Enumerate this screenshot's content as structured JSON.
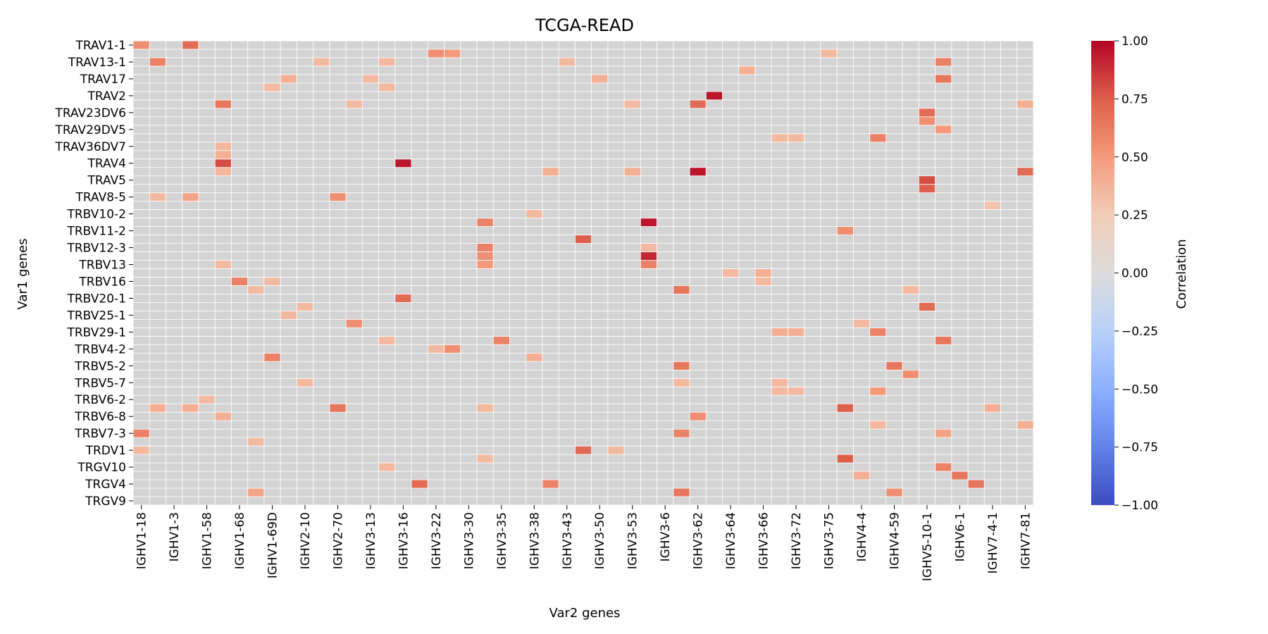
{
  "chart_data": {
    "type": "heatmap",
    "title": "TCGA-READ",
    "xlabel": "Var2 genes",
    "ylabel": "Var1 genes",
    "x_tick_labels": [
      "IGHV1-18",
      "IGHV1-3",
      "IGHV1-58",
      "IGHV1-68",
      "IGHV1-69D",
      "IGHV2-10",
      "IGHV2-70",
      "IGHV3-13",
      "IGHV3-16",
      "IGHV3-22",
      "IGHV3-30",
      "IGHV3-35",
      "IGHV3-38",
      "IGHV3-43",
      "IGHV3-50",
      "IGHV3-53",
      "IGHV3-6",
      "IGHV3-62",
      "IGHV3-64",
      "IGHV3-66",
      "IGHV3-72",
      "IGHV3-75",
      "IGHV4-4",
      "IGHV4-59",
      "IGHV5-10-1",
      "IGHV6-1",
      "IGHV7-4-1",
      "IGHV7-81"
    ],
    "y_tick_labels": [
      "TRAV1-1",
      "TRAV13-1",
      "TRAV17",
      "TRAV2",
      "TRAV23DV6",
      "TRAV29DV5",
      "TRAV36DV7",
      "TRAV4",
      "TRAV5",
      "TRAV8-5",
      "TRBV10-2",
      "TRBV11-2",
      "TRBV12-3",
      "TRBV13",
      "TRBV16",
      "TRBV20-1",
      "TRBV25-1",
      "TRBV29-1",
      "TRBV4-2",
      "TRBV5-2",
      "TRBV5-7",
      "TRBV6-2",
      "TRBV6-8",
      "TRBV7-3",
      "TRDV1",
      "TRGV10",
      "TRGV4",
      "TRGV9"
    ],
    "n_cols": 55,
    "n_rows": 55,
    "x_tick_step": 2,
    "y_tick_step": 2,
    "value_range": [
      -1.0,
      1.0
    ],
    "missing_color": "#d3d3d3",
    "colormap": "coolwarm",
    "colorbar": {
      "label": "Correlation",
      "ticks": [
        "1.00",
        "0.75",
        "0.50",
        "0.25",
        "0.00",
        "−0.25",
        "−0.50",
        "−0.75",
        "−1.00"
      ],
      "tick_values": [
        1.0,
        0.75,
        0.5,
        0.25,
        0.0,
        -0.25,
        -0.5,
        -0.75,
        -1.0
      ]
    },
    "cells": [
      {
        "row": 0,
        "col": 0,
        "value": 0.55
      },
      {
        "row": 0,
        "col": 3,
        "value": 0.7
      },
      {
        "row": 1,
        "col": 18,
        "value": 0.55
      },
      {
        "row": 1,
        "col": 19,
        "value": 0.5
      },
      {
        "row": 1,
        "col": 42,
        "value": 0.35
      },
      {
        "row": 2,
        "col": 1,
        "value": 0.6
      },
      {
        "row": 2,
        "col": 11,
        "value": 0.35
      },
      {
        "row": 2,
        "col": 15,
        "value": 0.35
      },
      {
        "row": 2,
        "col": 26,
        "value": 0.35
      },
      {
        "row": 2,
        "col": 49,
        "value": 0.6
      },
      {
        "row": 3,
        "col": 37,
        "value": 0.4
      },
      {
        "row": 4,
        "col": 9,
        "value": 0.4
      },
      {
        "row": 4,
        "col": 14,
        "value": 0.35
      },
      {
        "row": 4,
        "col": 28,
        "value": 0.4
      },
      {
        "row": 4,
        "col": 49,
        "value": 0.65
      },
      {
        "row": 5,
        "col": 8,
        "value": 0.35
      },
      {
        "row": 5,
        "col": 15,
        "value": 0.35
      },
      {
        "row": 6,
        "col": 35,
        "value": 0.95
      },
      {
        "row": 7,
        "col": 5,
        "value": 0.65
      },
      {
        "row": 7,
        "col": 13,
        "value": 0.35
      },
      {
        "row": 7,
        "col": 30,
        "value": 0.35
      },
      {
        "row": 7,
        "col": 34,
        "value": 0.7
      },
      {
        "row": 7,
        "col": 54,
        "value": 0.4
      },
      {
        "row": 8,
        "col": 48,
        "value": 0.7
      },
      {
        "row": 9,
        "col": 48,
        "value": 0.55
      },
      {
        "row": 10,
        "col": 49,
        "value": 0.5
      },
      {
        "row": 11,
        "col": 39,
        "value": 0.35
      },
      {
        "row": 11,
        "col": 40,
        "value": 0.35
      },
      {
        "row": 11,
        "col": 45,
        "value": 0.6
      },
      {
        "row": 12,
        "col": 5,
        "value": 0.35
      },
      {
        "row": 13,
        "col": 5,
        "value": 0.4
      },
      {
        "row": 14,
        "col": 5,
        "value": 0.8
      },
      {
        "row": 14,
        "col": 16,
        "value": 0.95
      },
      {
        "row": 15,
        "col": 5,
        "value": 0.35
      },
      {
        "row": 15,
        "col": 25,
        "value": 0.4
      },
      {
        "row": 15,
        "col": 30,
        "value": 0.4
      },
      {
        "row": 15,
        "col": 34,
        "value": 0.95
      },
      {
        "row": 15,
        "col": 54,
        "value": 0.7
      },
      {
        "row": 16,
        "col": 48,
        "value": 0.8
      },
      {
        "row": 17,
        "col": 48,
        "value": 0.75
      },
      {
        "row": 18,
        "col": 1,
        "value": 0.35
      },
      {
        "row": 18,
        "col": 3,
        "value": 0.45
      },
      {
        "row": 18,
        "col": 12,
        "value": 0.55
      },
      {
        "row": 19,
        "col": 52,
        "value": 0.3
      },
      {
        "row": 20,
        "col": 24,
        "value": 0.35
      },
      {
        "row": 21,
        "col": 21,
        "value": 0.6
      },
      {
        "row": 21,
        "col": 31,
        "value": 0.95
      },
      {
        "row": 22,
        "col": 43,
        "value": 0.55
      },
      {
        "row": 23,
        "col": 27,
        "value": 0.75
      },
      {
        "row": 24,
        "col": 21,
        "value": 0.6
      },
      {
        "row": 24,
        "col": 31,
        "value": 0.35
      },
      {
        "row": 25,
        "col": 21,
        "value": 0.55
      },
      {
        "row": 25,
        "col": 31,
        "value": 0.9
      },
      {
        "row": 26,
        "col": 5,
        "value": 0.35
      },
      {
        "row": 26,
        "col": 21,
        "value": 0.5
      },
      {
        "row": 26,
        "col": 31,
        "value": 0.6
      },
      {
        "row": 27,
        "col": 36,
        "value": 0.35
      },
      {
        "row": 27,
        "col": 38,
        "value": 0.4
      },
      {
        "row": 28,
        "col": 6,
        "value": 0.6
      },
      {
        "row": 28,
        "col": 8,
        "value": 0.35
      },
      {
        "row": 28,
        "col": 38,
        "value": 0.35
      },
      {
        "row": 29,
        "col": 7,
        "value": 0.35
      },
      {
        "row": 29,
        "col": 33,
        "value": 0.65
      },
      {
        "row": 29,
        "col": 47,
        "value": 0.35
      },
      {
        "row": 30,
        "col": 16,
        "value": 0.7
      },
      {
        "row": 31,
        "col": 10,
        "value": 0.35
      },
      {
        "row": 31,
        "col": 48,
        "value": 0.7
      },
      {
        "row": 32,
        "col": 9,
        "value": 0.35
      },
      {
        "row": 33,
        "col": 13,
        "value": 0.55
      },
      {
        "row": 33,
        "col": 44,
        "value": 0.35
      },
      {
        "row": 34,
        "col": 39,
        "value": 0.4
      },
      {
        "row": 34,
        "col": 40,
        "value": 0.4
      },
      {
        "row": 34,
        "col": 45,
        "value": 0.6
      },
      {
        "row": 35,
        "col": 15,
        "value": 0.35
      },
      {
        "row": 35,
        "col": 22,
        "value": 0.6
      },
      {
        "row": 35,
        "col": 49,
        "value": 0.65
      },
      {
        "row": 36,
        "col": 18,
        "value": 0.35
      },
      {
        "row": 36,
        "col": 19,
        "value": 0.55
      },
      {
        "row": 37,
        "col": 8,
        "value": 0.6
      },
      {
        "row": 37,
        "col": 24,
        "value": 0.4
      },
      {
        "row": 38,
        "col": 33,
        "value": 0.65
      },
      {
        "row": 38,
        "col": 46,
        "value": 0.65
      },
      {
        "row": 39,
        "col": 47,
        "value": 0.55
      },
      {
        "row": 40,
        "col": 10,
        "value": 0.35
      },
      {
        "row": 40,
        "col": 33,
        "value": 0.35
      },
      {
        "row": 40,
        "col": 39,
        "value": 0.35
      },
      {
        "row": 41,
        "col": 39,
        "value": 0.35
      },
      {
        "row": 41,
        "col": 40,
        "value": 0.35
      },
      {
        "row": 41,
        "col": 45,
        "value": 0.5
      },
      {
        "row": 42,
        "col": 4,
        "value": 0.35
      },
      {
        "row": 43,
        "col": 1,
        "value": 0.4
      },
      {
        "row": 43,
        "col": 3,
        "value": 0.4
      },
      {
        "row": 43,
        "col": 12,
        "value": 0.65
      },
      {
        "row": 43,
        "col": 21,
        "value": 0.35
      },
      {
        "row": 43,
        "col": 43,
        "value": 0.75
      },
      {
        "row": 43,
        "col": 52,
        "value": 0.4
      },
      {
        "row": 44,
        "col": 5,
        "value": 0.4
      },
      {
        "row": 44,
        "col": 34,
        "value": 0.55
      },
      {
        "row": 45,
        "col": 45,
        "value": 0.35
      },
      {
        "row": 45,
        "col": 54,
        "value": 0.4
      },
      {
        "row": 46,
        "col": 0,
        "value": 0.6
      },
      {
        "row": 46,
        "col": 33,
        "value": 0.6
      },
      {
        "row": 46,
        "col": 49,
        "value": 0.45
      },
      {
        "row": 47,
        "col": 7,
        "value": 0.35
      },
      {
        "row": 48,
        "col": 0,
        "value": 0.35
      },
      {
        "row": 48,
        "col": 27,
        "value": 0.7
      },
      {
        "row": 48,
        "col": 29,
        "value": 0.35
      },
      {
        "row": 49,
        "col": 21,
        "value": 0.35
      },
      {
        "row": 49,
        "col": 43,
        "value": 0.75
      },
      {
        "row": 50,
        "col": 15,
        "value": 0.35
      },
      {
        "row": 50,
        "col": 49,
        "value": 0.6
      },
      {
        "row": 51,
        "col": 44,
        "value": 0.4
      },
      {
        "row": 51,
        "col": 50,
        "value": 0.65
      },
      {
        "row": 52,
        "col": 17,
        "value": 0.7
      },
      {
        "row": 52,
        "col": 25,
        "value": 0.6
      },
      {
        "row": 52,
        "col": 51,
        "value": 0.65
      },
      {
        "row": 53,
        "col": 7,
        "value": 0.45
      },
      {
        "row": 53,
        "col": 33,
        "value": 0.65
      },
      {
        "row": 53,
        "col": 46,
        "value": 0.55
      }
    ]
  }
}
